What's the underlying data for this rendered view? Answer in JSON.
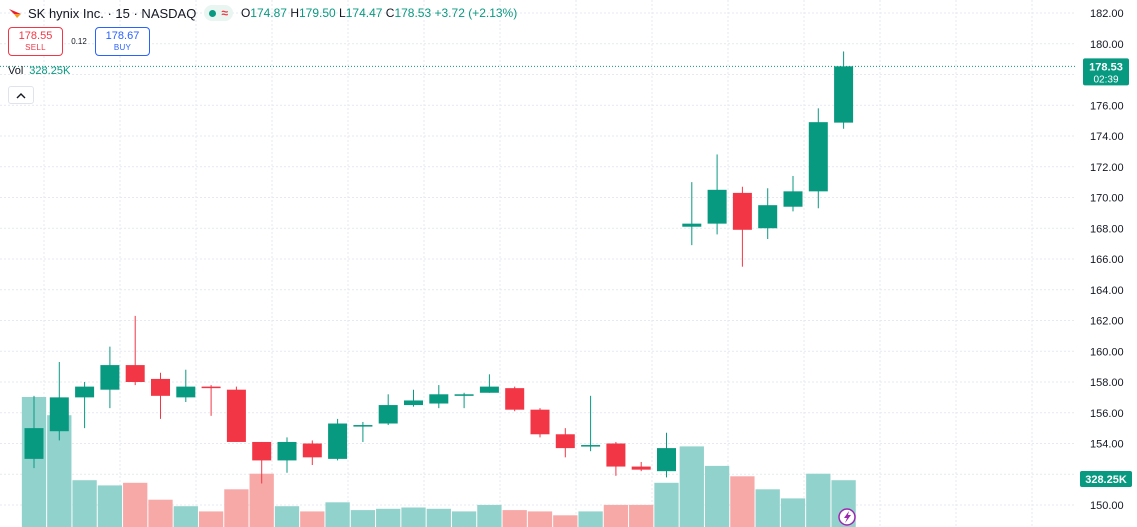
{
  "header": {
    "title": "SK hynix Inc. · 15 · NASDAQ",
    "status_icon": "market-open-dot",
    "wave_icon": "≈",
    "ohlc": {
      "o_label": "O",
      "o_value": "174.87",
      "h_label": "H",
      "h_value": "179.50",
      "l_label": "L",
      "l_value": "174.47",
      "c_label": "C",
      "c_value": "178.53",
      "change": "+3.72 (+2.13%)"
    }
  },
  "trade": {
    "sell_price": "178.55",
    "sell_label": "SELL",
    "spread": "0.12",
    "buy_price": "178.67",
    "buy_label": "BUY"
  },
  "volume": {
    "label": "Vol",
    "value": "328.25K"
  },
  "collapse_icon": "chevron-up",
  "colors": {
    "up": "#089981",
    "down": "#f23645",
    "vol_up": "#92d2cc",
    "vol_down": "#f7a9a7",
    "grid": "#e6e9ef",
    "axis_text": "#131722"
  },
  "chart_data": {
    "type": "candlestick",
    "symbol": "SK hynix Inc.",
    "interval": "15",
    "exchange": "NASDAQ",
    "y_axis": {
      "min": 150,
      "max": 182,
      "ticks": [
        150,
        152,
        154,
        156,
        158,
        160,
        162,
        164,
        166,
        168,
        170,
        172,
        174,
        176,
        178,
        180,
        182
      ]
    },
    "last_price_label": "178.53",
    "countdown_label": "02:39",
    "volume_label": "328.25K",
    "candles": [
      {
        "o": 153.0,
        "h": 157.1,
        "l": 152.4,
        "c": 155.0,
        "vol": 1.0
      },
      {
        "o": 154.8,
        "h": 159.3,
        "l": 154.2,
        "c": 157.0,
        "vol": 0.86
      },
      {
        "o": 157.0,
        "h": 158.0,
        "l": 155.0,
        "c": 157.7,
        "vol": 0.36
      },
      {
        "o": 157.5,
        "h": 160.3,
        "l": 156.3,
        "c": 159.1,
        "vol": 0.32
      },
      {
        "o": 159.1,
        "h": 162.3,
        "l": 157.8,
        "c": 158.0,
        "vol": 0.34
      },
      {
        "o": 158.2,
        "h": 158.6,
        "l": 155.6,
        "c": 157.1,
        "vol": 0.21
      },
      {
        "o": 157.0,
        "h": 158.8,
        "l": 156.7,
        "c": 157.7,
        "vol": 0.16
      },
      {
        "o": 157.7,
        "h": 157.8,
        "l": 155.8,
        "c": 157.6,
        "vol": 0.12
      },
      {
        "o": 157.5,
        "h": 157.7,
        "l": 154.1,
        "c": 154.1,
        "vol": 0.29
      },
      {
        "o": 154.1,
        "h": 154.1,
        "l": 151.4,
        "c": 152.9,
        "vol": 0.41
      },
      {
        "o": 152.9,
        "h": 154.4,
        "l": 152.1,
        "c": 154.1,
        "vol": 0.16
      },
      {
        "o": 154.0,
        "h": 154.2,
        "l": 152.6,
        "c": 153.1,
        "vol": 0.12
      },
      {
        "o": 153.0,
        "h": 155.6,
        "l": 152.9,
        "c": 155.3,
        "vol": 0.19
      },
      {
        "o": 155.1,
        "h": 155.4,
        "l": 154.1,
        "c": 155.2,
        "vol": 0.13
      },
      {
        "o": 155.3,
        "h": 157.2,
        "l": 155.2,
        "c": 156.5,
        "vol": 0.14
      },
      {
        "o": 156.5,
        "h": 157.5,
        "l": 156.4,
        "c": 156.8,
        "vol": 0.15
      },
      {
        "o": 156.6,
        "h": 157.8,
        "l": 156.3,
        "c": 157.2,
        "vol": 0.14
      },
      {
        "o": 157.1,
        "h": 157.3,
        "l": 156.3,
        "c": 157.2,
        "vol": 0.12
      },
      {
        "o": 157.3,
        "h": 158.5,
        "l": 157.3,
        "c": 157.7,
        "vol": 0.17
      },
      {
        "o": 157.6,
        "h": 157.7,
        "l": 156.1,
        "c": 156.2,
        "vol": 0.13
      },
      {
        "o": 156.2,
        "h": 156.3,
        "l": 154.4,
        "c": 154.6,
        "vol": 0.12
      },
      {
        "o": 154.6,
        "h": 155.0,
        "l": 153.1,
        "c": 153.7,
        "vol": 0.09
      },
      {
        "o": 153.8,
        "h": 157.1,
        "l": 153.5,
        "c": 153.9,
        "vol": 0.12
      },
      {
        "o": 154.0,
        "h": 154.1,
        "l": 151.9,
        "c": 152.5,
        "vol": 0.17
      },
      {
        "o": 152.5,
        "h": 152.8,
        "l": 152.2,
        "c": 152.3,
        "vol": 0.17
      },
      {
        "o": 152.2,
        "h": 154.7,
        "l": 151.8,
        "c": 153.7,
        "vol": 0.34
      },
      {
        "o": 168.1,
        "h": 171.0,
        "l": 166.9,
        "c": 168.3,
        "vol": 0.62
      },
      {
        "o": 168.3,
        "h": 172.8,
        "l": 167.6,
        "c": 170.5,
        "vol": 0.47
      },
      {
        "o": 170.3,
        "h": 170.7,
        "l": 165.5,
        "c": 167.9,
        "vol": 0.39
      },
      {
        "o": 168.0,
        "h": 170.6,
        "l": 167.3,
        "c": 169.5,
        "vol": 0.29
      },
      {
        "o": 169.4,
        "h": 171.4,
        "l": 169.1,
        "c": 170.4,
        "vol": 0.22
      },
      {
        "o": 170.4,
        "h": 175.8,
        "l": 169.3,
        "c": 174.9,
        "vol": 0.41
      },
      {
        "o": 174.87,
        "h": 179.5,
        "l": 174.47,
        "c": 178.53,
        "vol": 0.36
      }
    ]
  }
}
